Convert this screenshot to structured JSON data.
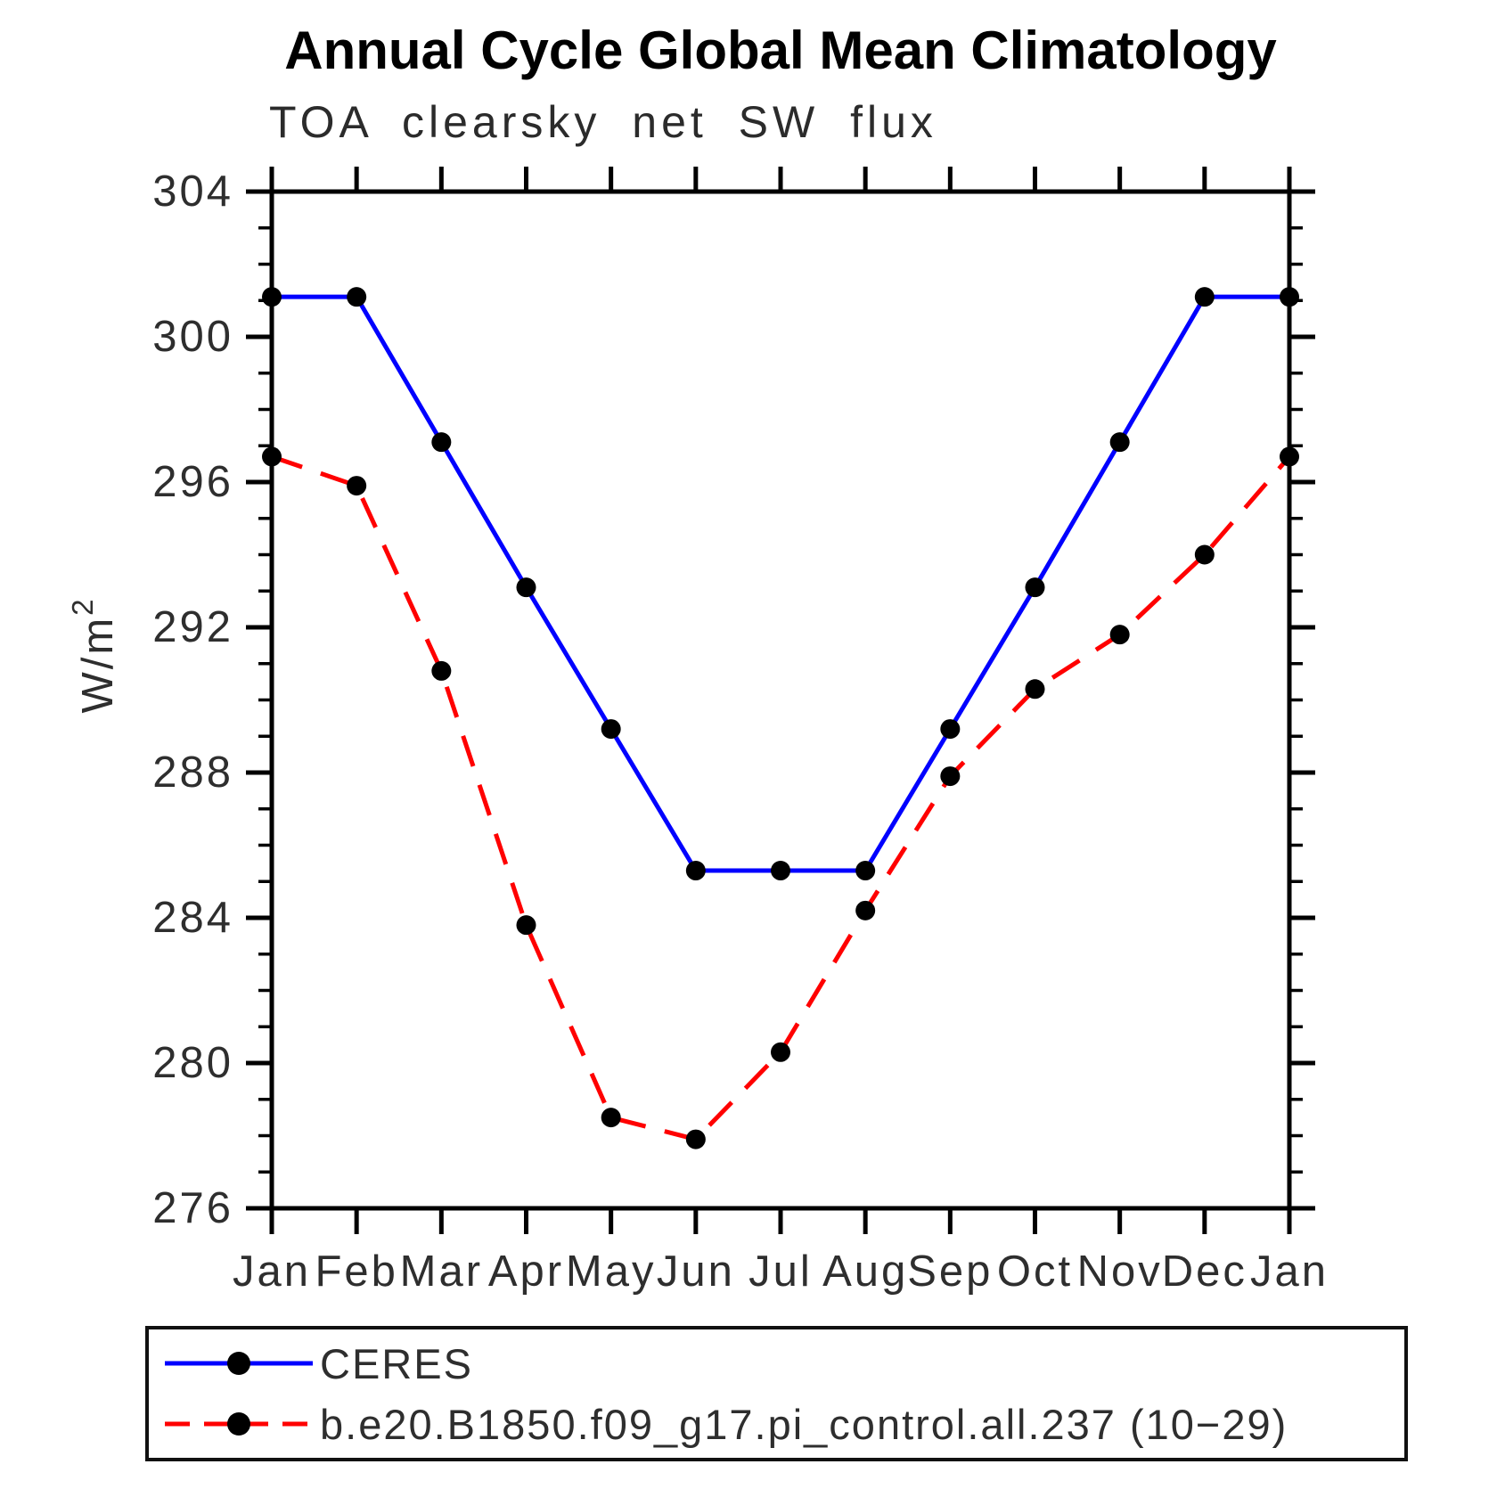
{
  "title": "Annual Cycle Global Mean Climatology",
  "subtitle": "TOA clearsky net SW flux",
  "chart_data": {
    "type": "line",
    "title": "Annual Cycle Global Mean Climatology",
    "subtitle": "TOA clearsky net SW flux",
    "xlabel": "",
    "ylabel": "W/m²",
    "ylabel_parts": {
      "base": "W/m",
      "sup": "2"
    },
    "categories": [
      "Jan",
      "Feb",
      "Mar",
      "Apr",
      "May",
      "Jun",
      "Jul",
      "Aug",
      "Sep",
      "Oct",
      "Nov",
      "Dec",
      "Jan"
    ],
    "ylim": [
      276,
      304
    ],
    "y_major_step": 4,
    "y_minor_step": 1,
    "y_tick_labels": [
      "276",
      "280",
      "284",
      "288",
      "292",
      "296",
      "300",
      "304"
    ],
    "grid": "off",
    "legend_position": "bottom-left-box",
    "series": [
      {
        "name": "CERES",
        "line_color": "#0000ff",
        "line_style": "solid",
        "marker": "filled-circle",
        "marker_color": "#000000",
        "values": [
          301.1,
          301.1,
          297.1,
          293.1,
          289.2,
          285.3,
          285.3,
          285.3,
          289.2,
          293.1,
          297.1,
          301.1,
          301.1
        ]
      },
      {
        "name": "b.e20.B1850.f09_g17.pi_control.all.237 (10−29)",
        "line_color": "#ff0000",
        "line_style": "dashed",
        "marker": "filled-circle",
        "marker_color": "#000000",
        "values": [
          296.7,
          295.9,
          290.8,
          283.8,
          278.5,
          277.9,
          280.3,
          284.2,
          287.9,
          290.3,
          291.8,
          294.0,
          296.7
        ]
      }
    ]
  }
}
